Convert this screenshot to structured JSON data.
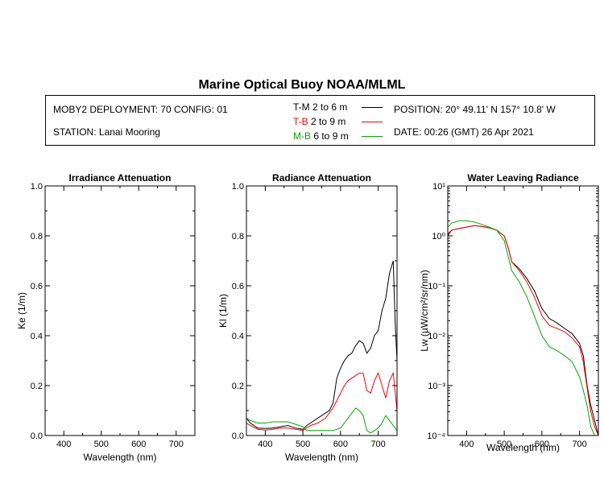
{
  "header": {
    "title": "Marine Optical Buoy NOAA/MLML",
    "deployment": "MOBY2 DEPLOYMENT: 70 CONFIG: 01",
    "station": "STATION: Lanai Mooring",
    "position": "POSITION: 20° 49.11' N   157° 10.8' W",
    "date": "DATE: 00:26 (GMT) 26 Apr 2021"
  },
  "legend": [
    {
      "code": "T-M",
      "range": "2 to 6  m",
      "color": "#000000"
    },
    {
      "code": "T-B",
      "range": "2 to 9  m",
      "color": "#ff0000"
    },
    {
      "code": "M-B",
      "range": "6 to 9  m",
      "color": "#00aa00"
    }
  ],
  "chart_data": [
    {
      "type": "line",
      "title": "Irradiance Attenuation",
      "xlabel": "Wavelength (nm)",
      "ylabel": "Ke  (1/m)",
      "xlim": [
        350,
        750
      ],
      "ylim": [
        0,
        1.0
      ],
      "xticks": [
        400,
        500,
        600,
        700
      ],
      "yticks": [
        "0.0",
        "0.2",
        "0.4",
        "0.6",
        "0.8",
        "1.0"
      ],
      "series": []
    },
    {
      "type": "line",
      "title": "Radiance Attenuation",
      "xlabel": "Wavelength (nm)",
      "ylabel": "Kl  (1/m)",
      "xlim": [
        350,
        750
      ],
      "ylim": [
        0,
        1.0
      ],
      "xticks": [
        400,
        500,
        600,
        700
      ],
      "yticks": [
        "0.0",
        "0.2",
        "0.4",
        "0.6",
        "0.8",
        "1.0"
      ],
      "series": [
        {
          "name": "T-M",
          "color": "#000000",
          "x": [
            350,
            360,
            380,
            400,
            420,
            440,
            460,
            480,
            500,
            510,
            520,
            540,
            560,
            570,
            580,
            585,
            590,
            600,
            610,
            620,
            630,
            640,
            650,
            660,
            670,
            680,
            690,
            700,
            710,
            720,
            730,
            740,
            745,
            750
          ],
          "y": [
            0.07,
            0.05,
            0.03,
            0.028,
            0.03,
            0.035,
            0.04,
            0.03,
            0.025,
            0.04,
            0.05,
            0.07,
            0.09,
            0.1,
            0.13,
            0.18,
            0.23,
            0.27,
            0.3,
            0.32,
            0.33,
            0.36,
            0.38,
            0.37,
            0.33,
            0.35,
            0.4,
            0.42,
            0.5,
            0.55,
            0.65,
            0.7,
            0.45,
            0.3
          ]
        },
        {
          "name": "T-B",
          "color": "#ff0000",
          "x": [
            350,
            360,
            380,
            400,
            420,
            440,
            460,
            480,
            500,
            510,
            520,
            540,
            560,
            570,
            580,
            590,
            600,
            610,
            620,
            640,
            650,
            660,
            670,
            680,
            690,
            700,
            710,
            720,
            730,
            740,
            750
          ],
          "y": [
            0.05,
            0.04,
            0.025,
            0.022,
            0.025,
            0.03,
            0.03,
            0.025,
            0.02,
            0.03,
            0.04,
            0.05,
            0.07,
            0.09,
            0.11,
            0.14,
            0.17,
            0.2,
            0.22,
            0.24,
            0.25,
            0.25,
            0.18,
            0.17,
            0.22,
            0.25,
            0.2,
            0.15,
            0.22,
            0.25,
            0.1
          ]
        },
        {
          "name": "M-B",
          "color": "#00aa00",
          "x": [
            350,
            360,
            380,
            400,
            420,
            440,
            460,
            480,
            500,
            510,
            520,
            540,
            560,
            580,
            600,
            610,
            620,
            630,
            640,
            650,
            660,
            670,
            680,
            690,
            700,
            710,
            720,
            730,
            740,
            750
          ],
          "y": [
            0.07,
            0.06,
            0.05,
            0.05,
            0.055,
            0.055,
            0.055,
            0.045,
            0.035,
            0.02,
            0.02,
            0.02,
            0.02,
            0.02,
            0.03,
            0.05,
            0.07,
            0.09,
            0.11,
            0.1,
            0.08,
            0.02,
            0.01,
            0.02,
            0.03,
            0.05,
            0.08,
            0.06,
            0.04,
            0.02
          ]
        }
      ]
    },
    {
      "type": "line",
      "title": "Water Leaving Radiance",
      "xlabel": "Wavelength (nm)",
      "ylabel": "Lw  (µW/cm²/sr/nm)",
      "yscale": "log",
      "xlim": [
        350,
        750
      ],
      "ylim": [
        0.0001,
        10
      ],
      "xticks": [
        400,
        500,
        600,
        700
      ],
      "yticks": [
        "10⁻⁴",
        "10⁻³",
        "10⁻²",
        "10⁻¹",
        "10⁰",
        "10¹"
      ],
      "series": [
        {
          "name": "T-M",
          "color": "#000000",
          "x": [
            350,
            360,
            380,
            400,
            420,
            440,
            460,
            480,
            500,
            510,
            520,
            540,
            560,
            580,
            600,
            620,
            640,
            660,
            680,
            700,
            710,
            720,
            730,
            740,
            750
          ],
          "y": [
            1.0,
            1.3,
            1.4,
            1.5,
            1.6,
            1.55,
            1.45,
            1.3,
            1.0,
            0.6,
            0.3,
            0.22,
            0.14,
            0.08,
            0.035,
            0.022,
            0.018,
            0.014,
            0.011,
            0.007,
            0.004,
            0.001,
            0.0004,
            0.0002,
            0.0001
          ]
        },
        {
          "name": "T-B",
          "color": "#ff0000",
          "x": [
            350,
            360,
            380,
            400,
            420,
            440,
            460,
            480,
            500,
            510,
            520,
            540,
            560,
            580,
            600,
            620,
            640,
            660,
            680,
            700,
            710,
            720,
            730,
            740,
            750
          ],
          "y": [
            1.1,
            1.3,
            1.4,
            1.5,
            1.6,
            1.55,
            1.45,
            1.3,
            1.0,
            0.6,
            0.3,
            0.2,
            0.12,
            0.06,
            0.025,
            0.016,
            0.014,
            0.012,
            0.009,
            0.006,
            0.003,
            0.0009,
            0.0003,
            0.00015,
            0.0001
          ]
        },
        {
          "name": "M-B",
          "color": "#00aa00",
          "x": [
            350,
            360,
            380,
            400,
            420,
            440,
            460,
            480,
            500,
            510,
            520,
            540,
            560,
            580,
            600,
            620,
            640,
            660,
            680,
            700,
            710,
            720,
            730,
            740,
            750
          ],
          "y": [
            1.5,
            1.8,
            2.0,
            2.0,
            1.9,
            1.7,
            1.5,
            1.3,
            0.8,
            0.4,
            0.2,
            0.12,
            0.06,
            0.025,
            0.01,
            0.006,
            0.005,
            0.004,
            0.003,
            0.0015,
            0.0008,
            0.0004,
            0.00015,
            0.0001,
            0.0001
          ]
        }
      ]
    }
  ]
}
